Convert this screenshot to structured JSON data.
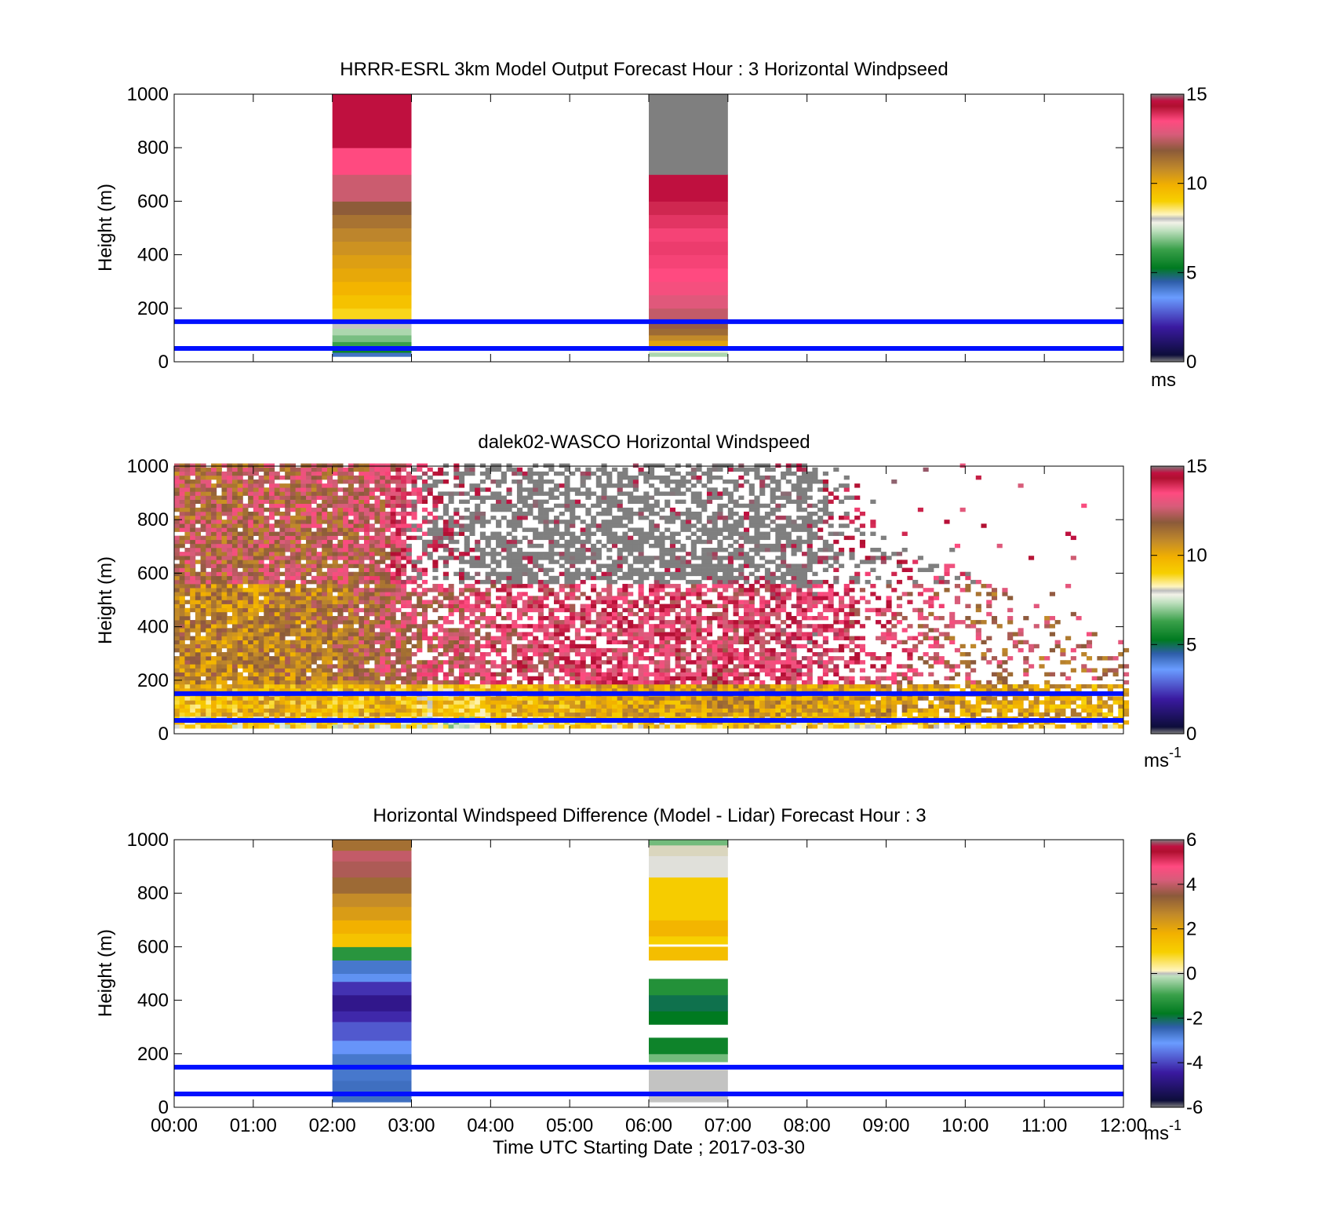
{
  "figure": {
    "xlabel": "Time UTC  Starting Date ; 2017-03-30",
    "ylabel": "Height (m)",
    "xticks": [
      "00:00",
      "01:00",
      "02:00",
      "03:00",
      "04:00",
      "05:00",
      "06:00",
      "07:00",
      "08:00",
      "09:00",
      "10:00",
      "11:00",
      "12:00"
    ],
    "yticks": [
      "0",
      "200",
      "400",
      "600",
      "800",
      "1000"
    ],
    "reference_lines_m": [
      50,
      150
    ],
    "reference_line_color": "#0010ff"
  },
  "chart_data": [
    {
      "type": "heatmap",
      "title": "HRRR-ESRL 3km Model Output   Forecast Hour : 3 Horizontal Windpseed",
      "xlim_hours": [
        0,
        12
      ],
      "ylim": [
        0,
        1000
      ],
      "colorbar": {
        "ticks": [
          "0",
          "5",
          "10",
          "15"
        ],
        "range": [
          0,
          15
        ],
        "unit_main": "ms",
        "unit_sup": ""
      },
      "columns": [
        {
          "t_start": 2,
          "t_end": 3,
          "cells": [
            [
              20,
              35,
              4.2
            ],
            [
              35,
              55,
              5.5
            ],
            [
              55,
              75,
              6.3
            ],
            [
              75,
              100,
              6.8
            ],
            [
              100,
              125,
              7.2
            ],
            [
              125,
              160,
              8.0
            ],
            [
              160,
              200,
              8.9
            ],
            [
              200,
              250,
              9.4
            ],
            [
              250,
              300,
              9.8
            ],
            [
              300,
              350,
              10.1
            ],
            [
              350,
              400,
              10.3
            ],
            [
              400,
              450,
              10.6
            ],
            [
              450,
              500,
              10.9
            ],
            [
              500,
              550,
              11.3
            ],
            [
              550,
              600,
              11.8
            ],
            [
              600,
              700,
              12.6
            ],
            [
              700,
              800,
              13.5
            ],
            [
              800,
              1000,
              14.6
            ]
          ]
        },
        {
          "t_start": 6,
          "t_end": 7,
          "cells": [
            [
              20,
              35,
              7.2
            ],
            [
              35,
              55,
              7.7
            ],
            [
              55,
              80,
              10.2
            ],
            [
              80,
              100,
              10.8
            ],
            [
              100,
              125,
              11.5
            ],
            [
              125,
              160,
              12.0
            ],
            [
              160,
              200,
              12.5
            ],
            [
              200,
              250,
              12.9
            ],
            [
              250,
              300,
              13.3
            ],
            [
              300,
              350,
              13.5
            ],
            [
              350,
              400,
              13.6
            ],
            [
              400,
              450,
              13.7
            ],
            [
              450,
              500,
              13.6
            ],
            [
              500,
              550,
              13.8
            ],
            [
              550,
              600,
              14.0
            ],
            [
              600,
              700,
              14.6
            ],
            [
              700,
              1000,
              16
            ]
          ]
        }
      ]
    },
    {
      "type": "heatmap",
      "title": "dalek02-WASCO  Horizontal Windspeed",
      "xlim_hours": [
        0,
        12
      ],
      "ylim": [
        0,
        1000
      ],
      "colorbar": {
        "ticks": [
          "0",
          "5",
          "10",
          "15"
        ],
        "range": [
          0,
          15
        ],
        "unit_main": "ms",
        "unit_sup": "-1"
      },
      "note": "dense lidar observations; ~4 min time bins, ~15 m gates, values in m/s",
      "profile_knots_hours": [
        0,
        1,
        2,
        2.6,
        3.2,
        4,
        5,
        6,
        7,
        8,
        8.5,
        9,
        10,
        11,
        12
      ],
      "low_level_mean_ms": [
        9.5,
        9.8,
        9.6,
        9.8,
        9,
        9.5,
        10,
        10.2,
        10.5,
        10.2,
        10,
        10.5,
        10.5,
        10.2,
        10
      ],
      "mid_level_mean_ms": [
        11,
        10.8,
        11.3,
        12.3,
        12.5,
        13,
        13.4,
        13.5,
        13.2,
        13.8,
        13.4,
        13.3,
        12,
        12,
        12
      ],
      "upper_level_mean_ms": [
        12,
        12,
        12.2,
        12.5,
        15,
        16,
        16,
        16,
        16,
        16,
        15,
        15,
        14,
        14,
        14
      ],
      "data_top_m": [
        1000,
        1000,
        1000,
        1000,
        1000,
        1000,
        1000,
        1000,
        1000,
        1000,
        920,
        700,
        600,
        450,
        350
      ],
      "coverage_fraction": [
        0.98,
        0.98,
        0.98,
        0.97,
        0.75,
        0.78,
        0.82,
        0.85,
        0.85,
        0.8,
        0.5,
        0.35,
        0.3,
        0.25,
        0.2
      ]
    },
    {
      "type": "heatmap",
      "title": "Horizontal Windspeed Difference (Model - Lidar) Forecast Hour : 3",
      "xlim_hours": [
        0,
        12
      ],
      "ylim": [
        0,
        1000
      ],
      "colorbar": {
        "ticks": [
          "-6",
          "-4",
          "-2",
          "0",
          "2",
          "4",
          "6"
        ],
        "range": [
          -6,
          6
        ],
        "unit_main": "ms",
        "unit_sup": "-1"
      },
      "columns": [
        {
          "t_start": 2,
          "t_end": 3,
          "cells": [
            [
              20,
              100,
              -2.6
            ],
            [
              100,
              200,
              -2.7
            ],
            [
              200,
              250,
              -3.2
            ],
            [
              250,
              320,
              -3.8
            ],
            [
              320,
              360,
              -4.3
            ],
            [
              360,
              420,
              -4.7
            ],
            [
              420,
              470,
              -4.2
            ],
            [
              470,
              500,
              -3.0
            ],
            [
              500,
              550,
              -2.7
            ],
            [
              550,
              600,
              -1.2
            ],
            [
              600,
              650,
              1.5
            ],
            [
              650,
              700,
              1.9
            ],
            [
              700,
              750,
              2.3
            ],
            [
              750,
              800,
              2.6
            ],
            [
              800,
              860,
              3.2
            ],
            [
              860,
              920,
              3.8
            ],
            [
              920,
              960,
              4.0
            ],
            [
              960,
              1000,
              3.1
            ]
          ]
        },
        {
          "t_start": 6,
          "t_end": 7,
          "cells": [
            [
              20,
              140,
              0.4
            ],
            [
              170,
              200,
              -0.6
            ],
            [
              200,
              260,
              -1.6
            ],
            [
              310,
              360,
              -1.8
            ],
            [
              360,
              420,
              -2.0
            ],
            [
              420,
              480,
              -1.3
            ],
            [
              550,
              600,
              1.6
            ],
            [
              610,
              640,
              1.2
            ],
            [
              640,
              700,
              1.8
            ],
            [
              700,
              860,
              1.3
            ],
            [
              860,
              940,
              0.3
            ],
            [
              940,
              980,
              0.5
            ],
            [
              980,
              1000,
              -0.6
            ]
          ]
        }
      ]
    }
  ]
}
